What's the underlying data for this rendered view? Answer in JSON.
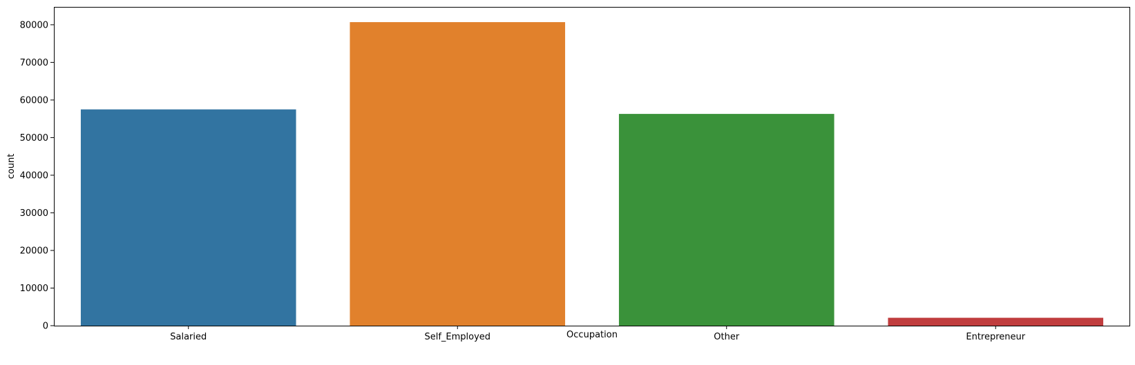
{
  "chart_data": {
    "type": "bar",
    "title": "",
    "xlabel": "Occupation",
    "ylabel": "count",
    "categories": [
      "Salaried",
      "Self_Employed",
      "Other",
      "Entrepreneur"
    ],
    "values": [
      57500,
      80700,
      56300,
      2100
    ],
    "colors": [
      "#3274a1",
      "#e1812c",
      "#3a923a",
      "#c03d3e"
    ],
    "ylim": [
      0,
      84750
    ],
    "yticks": [
      0,
      10000,
      20000,
      30000,
      40000,
      50000,
      60000,
      70000,
      80000
    ],
    "ytick_labels": [
      "0",
      "10000",
      "20000",
      "30000",
      "40000",
      "50000",
      "60000",
      "70000",
      "80000"
    ],
    "grid": false,
    "legend": "none"
  }
}
